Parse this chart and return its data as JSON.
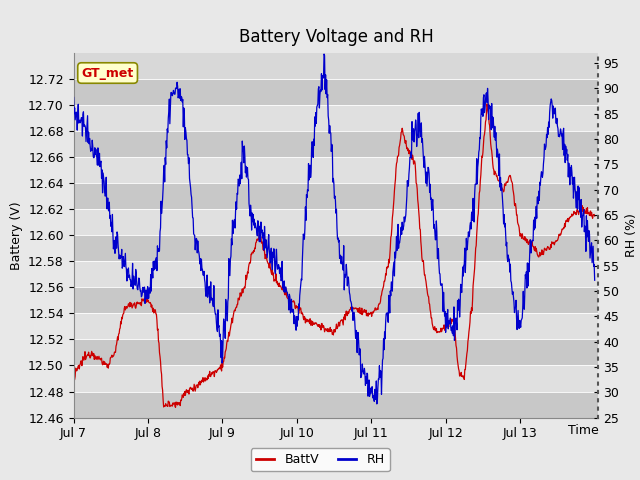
{
  "title": "Battery Voltage and RH",
  "xlabel": "Time",
  "ylabel_left": "Battery (V)",
  "ylabel_right": "RH (%)",
  "annotation": "GT_met",
  "ylim_left": [
    12.46,
    12.74
  ],
  "ylim_right": [
    25,
    97
  ],
  "yticks_left": [
    12.46,
    12.48,
    12.5,
    12.52,
    12.54,
    12.56,
    12.58,
    12.6,
    12.62,
    12.64,
    12.66,
    12.68,
    12.7,
    12.72
  ],
  "yticks_right": [
    25,
    30,
    35,
    40,
    45,
    50,
    55,
    60,
    65,
    70,
    75,
    80,
    85,
    90,
    95
  ],
  "xtick_labels": [
    "Jul 7",
    "Jul 8",
    "Jul 9",
    "Jul 10",
    "Jul 11",
    "Jul 12",
    "Jul 13"
  ],
  "color_battv": "#cc0000",
  "color_rh": "#0000cc",
  "legend_labels": [
    "BattV",
    "RH"
  ],
  "background_color": "#e8e8e8",
  "plot_bg_color": "#d8d8d8",
  "grid_color": "#ffffff",
  "annotation_bg": "#ffffcc",
  "annotation_border": "#888800",
  "annotation_text_color": "#cc0000",
  "title_fontsize": 12,
  "label_fontsize": 9,
  "tick_fontsize": 9
}
